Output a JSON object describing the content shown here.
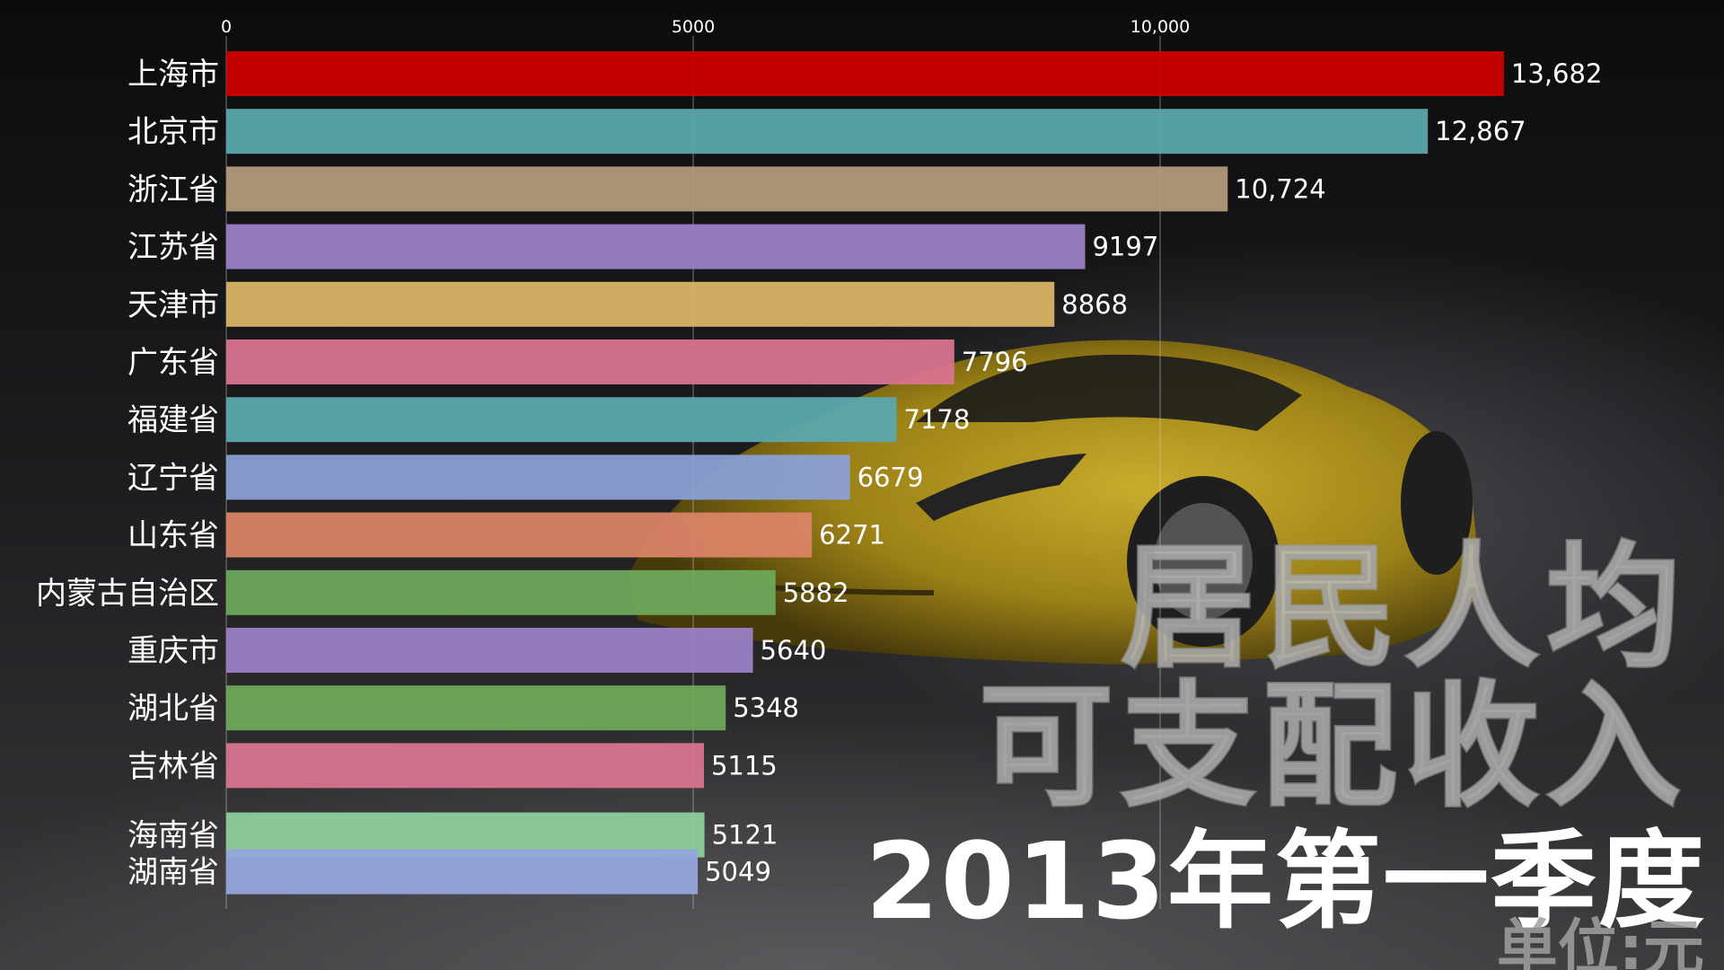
{
  "chart_data": {
    "type": "bar",
    "orientation": "horizontal",
    "categories": [
      "上海市",
      "北京市",
      "浙江省",
      "江苏省",
      "天津市",
      "广东省",
      "福建省",
      "辽宁省",
      "山东省",
      "内蒙古自治区",
      "重庆市",
      "湖北省",
      "吉林省",
      "海南省",
      "湖南省"
    ],
    "values": [
      13682,
      12867,
      10724,
      9197,
      8868,
      7796,
      7178,
      6679,
      6271,
      5882,
      5640,
      5348,
      5115,
      5121,
      5049
    ],
    "value_labels": [
      "13,682",
      "12,867",
      "10,724",
      "9197",
      "8868",
      "7796",
      "7178",
      "6679",
      "6271",
      "5882",
      "5640",
      "5348",
      "5115",
      "5121",
      "5049"
    ],
    "bar_colors": [
      "#cc0000",
      "#5ba8ad",
      "#b29a7a",
      "#9b7fc4",
      "#d8b468",
      "#d9738f",
      "#5ba8ad",
      "#8aa0d4",
      "#d98466",
      "#6ea85a",
      "#9b7fc4",
      "#6ea85a",
      "#d9738f",
      "#8dcf9c",
      "#93a6dc"
    ],
    "x_ticks": [
      0,
      5000,
      10000
    ],
    "x_tick_labels": [
      "0",
      "5000",
      "10,000"
    ],
    "xlim": [
      0,
      13682
    ],
    "grid": true,
    "title_line1": "居民人均",
    "title_line2": "可支配收入",
    "period": "2013年第一季度",
    "unit": "单位:元"
  },
  "colors": {
    "background": "#1b1b1e",
    "label_text": "#ffffff",
    "gridline": "#cfcfcf"
  }
}
